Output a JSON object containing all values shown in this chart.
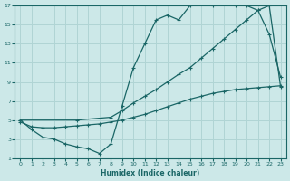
{
  "xlabel": "Humidex (Indice chaleur)",
  "bg_color": "#cce8e8",
  "grid_color": "#b0d4d4",
  "line_color": "#1a6666",
  "xlim": [
    -0.5,
    23.5
  ],
  "ylim": [
    1,
    17
  ],
  "xticks": [
    0,
    1,
    2,
    3,
    4,
    5,
    6,
    7,
    8,
    9,
    10,
    11,
    12,
    13,
    14,
    15,
    16,
    17,
    18,
    19,
    20,
    21,
    22,
    23
  ],
  "yticks": [
    1,
    3,
    5,
    7,
    9,
    11,
    13,
    15,
    17
  ],
  "curve1_x": [
    0,
    1,
    2,
    3,
    4,
    5,
    6,
    7,
    8,
    9,
    10,
    11,
    12,
    13,
    14,
    15,
    16,
    17,
    18,
    19,
    20,
    21,
    22,
    23
  ],
  "curve1_y": [
    5,
    4.0,
    3.2,
    3.0,
    2.5,
    2.2,
    2.0,
    1.5,
    2.5,
    6.5,
    10.5,
    13.0,
    15.5,
    16.0,
    15.5,
    17.0,
    17.5,
    17.0,
    17.5,
    17.0,
    17.0,
    16.5,
    14.0,
    9.5
  ],
  "curve2_x": [
    0,
    5,
    8,
    9,
    10,
    11,
    12,
    13,
    14,
    15,
    16,
    17,
    18,
    19,
    20,
    21,
    22,
    23
  ],
  "curve2_y": [
    5,
    5.0,
    5.3,
    6.0,
    6.8,
    7.5,
    8.2,
    9.0,
    9.8,
    10.5,
    11.5,
    12.5,
    13.5,
    14.5,
    15.5,
    16.5,
    17.0,
    8.5
  ],
  "curve3_x": [
    0,
    1,
    2,
    3,
    4,
    5,
    6,
    7,
    8,
    9,
    10,
    11,
    12,
    13,
    14,
    15,
    16,
    17,
    18,
    19,
    20,
    21,
    22,
    23
  ],
  "curve3_y": [
    4.8,
    4.3,
    4.2,
    4.2,
    4.3,
    4.4,
    4.5,
    4.6,
    4.8,
    5.0,
    5.3,
    5.6,
    6.0,
    6.4,
    6.8,
    7.2,
    7.5,
    7.8,
    8.0,
    8.2,
    8.3,
    8.4,
    8.5,
    8.6
  ]
}
